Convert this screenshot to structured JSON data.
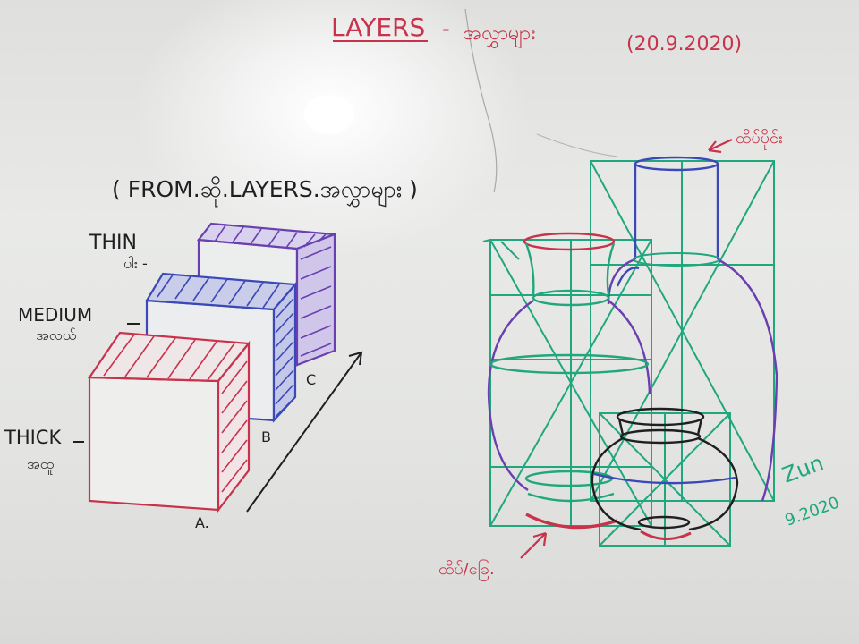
{
  "title": {
    "main": "LAYERS",
    "dash": "-",
    "script": "အလွှာများ",
    "date": "(20.9.2020)"
  },
  "subtitle": "( FROM.ဆို.LAYERS.အလွှာများ )",
  "layers": [
    {
      "en": "THIN",
      "mm": "ပါး -",
      "tag": "C"
    },
    {
      "en": "MEDIUM",
      "mm": "အလယ်",
      "tag": "B"
    },
    {
      "en": "THICK",
      "mm": "အထူ",
      "tag": "A."
    }
  ],
  "annotations": {
    "top_label": "ထိပ်ပိုင်း",
    "bottom_label": "ထိပ်/ခြေ.",
    "signature": "Zun",
    "sig_date": "9.2020"
  },
  "colors": {
    "red": "#c8324a",
    "green": "#21a77e",
    "blue": "#3a48b8",
    "purple": "#6a3fb0",
    "black": "#1f1f22"
  }
}
